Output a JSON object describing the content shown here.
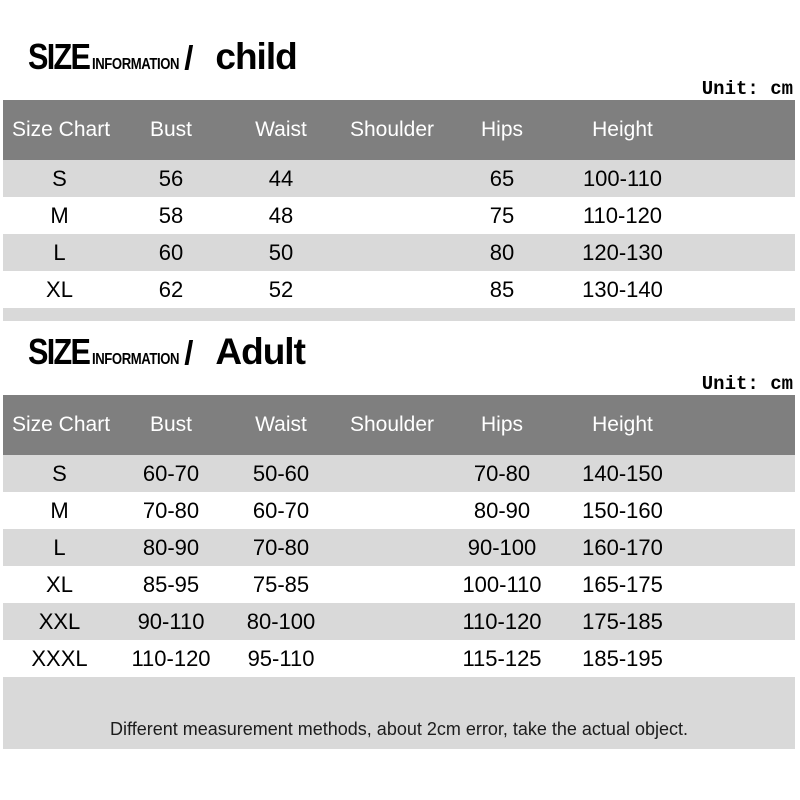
{
  "colors": {
    "page_bg": "#ffffff",
    "header_bg": "#7f7f7f",
    "header_text": "#ffffff",
    "row_bg": "#ffffff",
    "row_alt_bg": "#d9d9d9",
    "footer_bg": "#d9d9d9",
    "body_text": "#000000"
  },
  "sections": [
    {
      "id": "child",
      "title": {
        "size_label": "SIZE",
        "info_label": "INFORMATION",
        "separator": "/",
        "group_label": "child"
      },
      "unit_label": "Unit: cm",
      "table": {
        "headers": [
          "Size Chart",
          "Bust",
          "Waist",
          "Shoulder",
          "Hips",
          "Height"
        ],
        "rows": [
          [
            "S",
            "56",
            "44",
            "",
            "65",
            "100-110"
          ],
          [
            "M",
            "58",
            "48",
            "",
            "75",
            "110-120"
          ],
          [
            "L",
            "60",
            "50",
            "",
            "80",
            "120-130"
          ],
          [
            "XL",
            "62",
            "52",
            "",
            "85",
            "130-140"
          ]
        ]
      }
    },
    {
      "id": "adult",
      "title": {
        "size_label": "SIZE",
        "info_label": "INFORMATION",
        "separator": "/",
        "group_label": "Adult"
      },
      "unit_label": "Unit: cm",
      "table": {
        "headers": [
          "Size Chart",
          "Bust",
          "Waist",
          "Shoulder",
          "Hips",
          "Height"
        ],
        "rows": [
          [
            "S",
            "60-70",
            "50-60",
            "",
            "70-80",
            "140-150"
          ],
          [
            "M",
            "70-80",
            "60-70",
            "",
            "80-90",
            "150-160"
          ],
          [
            "L",
            "80-90",
            "70-80",
            "",
            "90-100",
            "160-170"
          ],
          [
            "XL",
            "85-95",
            "75-85",
            "",
            "100-110",
            "165-175"
          ],
          [
            "XXL",
            "90-110",
            "80-100",
            "",
            "110-120",
            "175-185"
          ],
          [
            "XXXL",
            "110-120",
            "95-110",
            "",
            "115-125",
            "185-195"
          ]
        ]
      },
      "footer_note": "Different measurement methods, about 2cm error, take the actual object."
    }
  ]
}
